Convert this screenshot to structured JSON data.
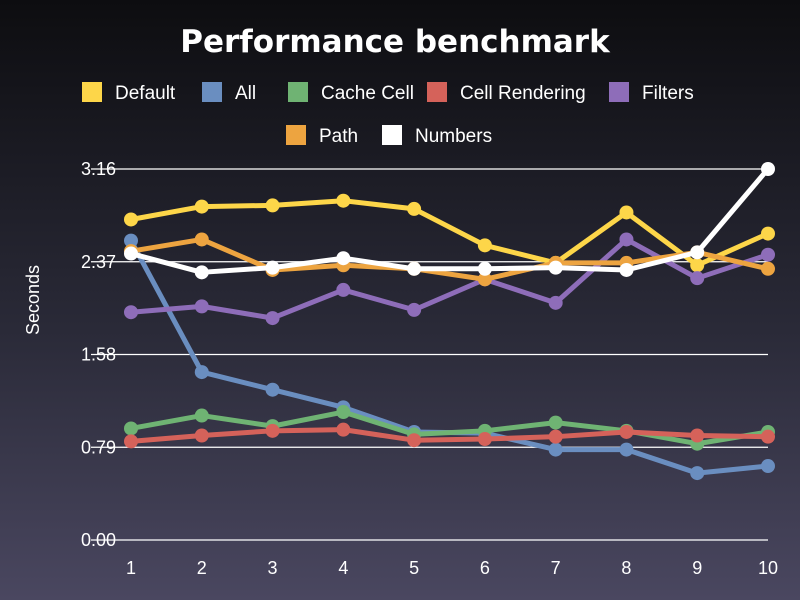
{
  "chart_data": {
    "type": "line",
    "title": "Performance benchmark",
    "xlabel": "",
    "ylabel": "Seconds",
    "x": [
      1,
      2,
      3,
      4,
      5,
      6,
      7,
      8,
      9,
      10
    ],
    "x_tick_labels": [
      "1",
      "2",
      "3",
      "4",
      "5",
      "6",
      "7",
      "8",
      "9",
      "10"
    ],
    "ylim": [
      0,
      3.16
    ],
    "y_ticks": [
      0.0,
      0.79,
      1.58,
      2.37,
      3.16
    ],
    "y_tick_labels": [
      "0.00",
      "0.79",
      "1.58",
      "2.37",
      "3.16"
    ],
    "grid": "horizontal",
    "legend_position": "top",
    "series": [
      {
        "name": "Default",
        "color": "#fdd649",
        "values": [
          2.73,
          2.84,
          2.85,
          2.89,
          2.82,
          2.51,
          2.36,
          2.79,
          2.34,
          2.61
        ]
      },
      {
        "name": "All",
        "color": "#6a8ec0",
        "values": [
          2.55,
          1.43,
          1.28,
          1.13,
          0.92,
          0.91,
          0.77,
          0.77,
          0.57,
          0.63
        ]
      },
      {
        "name": "Cache Cell",
        "color": "#6fb373",
        "values": [
          0.95,
          1.06,
          0.97,
          1.09,
          0.9,
          0.93,
          1.0,
          0.93,
          0.82,
          0.92
        ]
      },
      {
        "name": "Cell Rendering",
        "color": "#d5625a",
        "values": [
          0.84,
          0.89,
          0.93,
          0.94,
          0.85,
          0.86,
          0.88,
          0.92,
          0.89,
          0.88
        ]
      },
      {
        "name": "Filters",
        "color": "#8e6db9",
        "values": [
          1.94,
          1.99,
          1.89,
          2.13,
          1.96,
          2.22,
          2.02,
          2.56,
          2.23,
          2.43
        ]
      },
      {
        "name": "Path",
        "color": "#eda440",
        "values": [
          2.46,
          2.56,
          2.3,
          2.34,
          2.31,
          2.22,
          2.36,
          2.36,
          2.45,
          2.31
        ]
      },
      {
        "name": "Numbers",
        "color": "#ffffff",
        "values": [
          2.44,
          2.28,
          2.32,
          2.4,
          2.31,
          2.31,
          2.32,
          2.3,
          2.45,
          3.16
        ]
      }
    ]
  }
}
